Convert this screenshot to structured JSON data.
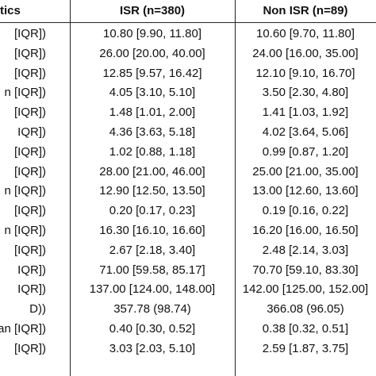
{
  "header": {
    "col0": "tics",
    "col1": "ISR (n=380)",
    "col2": "Non ISR (n=89)"
  },
  "rows": [
    {
      "label": "[IQR])",
      "isr": "10.80 [9.90, 11.80]",
      "non_isr": "10.60 [9.70, 11.80]"
    },
    {
      "label": "[IQR])",
      "isr": "26.00 [20.00, 40.00]",
      "non_isr": "24.00 [16.00, 35.00]"
    },
    {
      "label": "[IQR])",
      "isr": "12.85 [9.57, 16.42]",
      "non_isr": "12.10 [9.10, 16.70]"
    },
    {
      "label": "n [IQR])",
      "isr": "4.05 [3.10, 5.10]",
      "non_isr": "3.50 [2.30, 4.80]"
    },
    {
      "label": "[IQR])",
      "isr": "1.48 [1.01, 2.00]",
      "non_isr": "1.41 [1.03, 1.92]"
    },
    {
      "label": "IQR])",
      "isr": "4.36 [3.63, 5.18]",
      "non_isr": "4.02 [3.64, 5.06]"
    },
    {
      "label": "[IQR])",
      "isr": "1.02 [0.88, 1.18]",
      "non_isr": "0.99 [0.87, 1.20]"
    },
    {
      "label": "[IQR])",
      "isr": "28.00 [21.00, 46.00]",
      "non_isr": "25.00 [21.00, 35.00]"
    },
    {
      "label": "n [IQR])",
      "isr": "12.90 [12.50, 13.50]",
      "non_isr": "13.00 [12.60, 13.60]"
    },
    {
      "label": "[IQR])",
      "isr": "0.20 [0.17, 0.23]",
      "non_isr": "0.19 [0.16, 0.22]"
    },
    {
      "label": "n [IQR])",
      "isr": "16.30 [16.10, 16.60]",
      "non_isr": "16.20 [16.00, 16.50]"
    },
    {
      "label": "[IQR])",
      "isr": "2.67 [2.18, 3.40]",
      "non_isr": "2.48 [2.14, 3.03]"
    },
    {
      "label": "IQR])",
      "isr": "71.00 [59.58, 85.17]",
      "non_isr": "70.70 [59.10, 83.30]"
    },
    {
      "label": "IQR])",
      "isr": "137.00 [124.00, 148.00]",
      "non_isr": "142.00 [125.00, 152.00]"
    },
    {
      "label": "D))",
      "isr": "357.78 (98.74)",
      "non_isr": "366.08 (96.05)"
    },
    {
      "label": "edian [IQR])",
      "isr": "0.40 [0.30, 0.52]",
      "non_isr": "0.38 [0.32, 0.51]"
    },
    {
      "label": "[IQR])",
      "isr": "3.03 [2.03, 5.10]",
      "non_isr": "2.59 [1.87, 3.75]"
    }
  ]
}
